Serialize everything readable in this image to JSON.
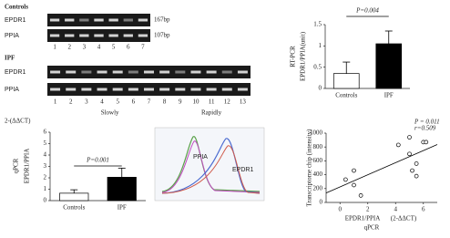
{
  "figure": {
    "controls": {
      "title": "Controls",
      "rows": [
        "EPDR1",
        "PPIA"
      ],
      "sizes": [
        "167bp",
        "107bp"
      ],
      "lanes": [
        "1",
        "2",
        "3",
        "4",
        "5",
        "6",
        "7"
      ]
    },
    "ipf": {
      "title": "IPF",
      "rows": [
        "EPDR1",
        "PPIA"
      ],
      "lanes": [
        "1",
        "2",
        "3",
        "4",
        "5",
        "6",
        "7",
        "8",
        "9",
        "10",
        "11",
        "12",
        "13"
      ],
      "groups": [
        "Slowly",
        "Rapidly"
      ]
    },
    "melt_curve": {
      "labels": [
        "PPIA",
        "EPDR1"
      ]
    }
  },
  "chart_data": [
    {
      "type": "bar",
      "ylabel": [
        "RT-PCR",
        "EPDR1/PPIA(unit)"
      ],
      "annotation": "P=0.004",
      "categories": [
        "Controls",
        "IPF"
      ],
      "values": [
        0.35,
        1.05
      ],
      "errors": [
        0.27,
        0.3
      ],
      "colors": [
        "#ffffff",
        "#000000"
      ],
      "ylim": [
        0,
        1.5
      ],
      "yticks": [
        0,
        0.5,
        1,
        1.5
      ]
    },
    {
      "type": "bar",
      "title": "2-(ΔΔCT)",
      "ylabel": [
        "qPCR",
        "EPDR1/PPIA"
      ],
      "annotation": "P=0.001",
      "categories": [
        "Controls",
        "IPF"
      ],
      "values": [
        0.65,
        2.05
      ],
      "errors": [
        0.3,
        0.8
      ],
      "colors": [
        "#ffffff",
        "#000000"
      ],
      "ylim": [
        0,
        6
      ],
      "yticks": [
        0,
        1,
        2,
        3,
        4,
        5,
        6
      ]
    },
    {
      "type": "scatter",
      "ylabel": "Transcriptome chip (intensity)",
      "xlabel": [
        "EPDR1/PPIA",
        "(2-ΔΔCT)",
        "qPCR"
      ],
      "annotations": [
        "P = 0.011",
        "r=0.509"
      ],
      "trendline": true,
      "color": "#000000",
      "x": [
        0.4,
        1.0,
        1.0,
        1.5,
        4.2,
        5.0,
        5.0,
        5.2,
        5.5,
        5.5,
        6.0,
        6.2
      ],
      "values": [
        330,
        460,
        250,
        100,
        830,
        940,
        700,
        460,
        560,
        380,
        870,
        870
      ],
      "xlim": [
        -1,
        7
      ],
      "xticks": [
        0,
        2,
        4,
        6
      ],
      "ylim": [
        0,
        1000
      ],
      "yticks": [
        0,
        200,
        400,
        600,
        800,
        1000
      ]
    }
  ]
}
